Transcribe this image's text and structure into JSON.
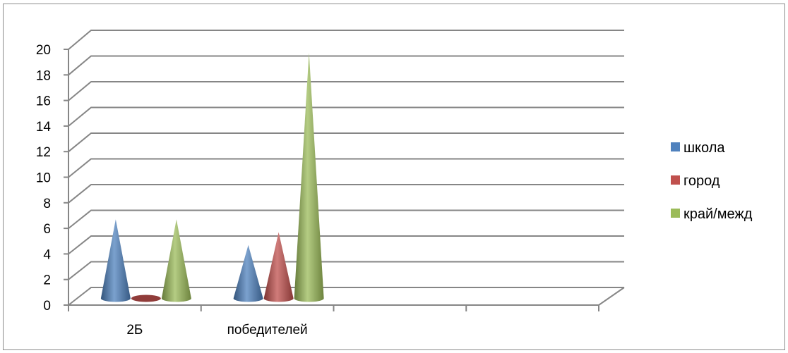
{
  "chart_data": {
    "type": "bar",
    "subtype": "3d-cone",
    "categories": [
      "2Б",
      "победителей",
      "",
      ""
    ],
    "series": [
      {
        "name": "школа",
        "values": [
          6,
          4,
          null,
          null
        ],
        "color": "#4F81BD"
      },
      {
        "name": "город",
        "values": [
          0,
          5,
          null,
          null
        ],
        "color": "#C0504D"
      },
      {
        "name": "край/межд",
        "values": [
          6,
          19,
          null,
          null
        ],
        "color": "#9BBB59"
      }
    ],
    "ylim": [
      0,
      20
    ],
    "y_ticks": [
      "0",
      "2",
      "4",
      "6",
      "8",
      "10",
      "12",
      "14",
      "16",
      "18",
      "20"
    ],
    "grid": true,
    "legend_position": "right"
  }
}
